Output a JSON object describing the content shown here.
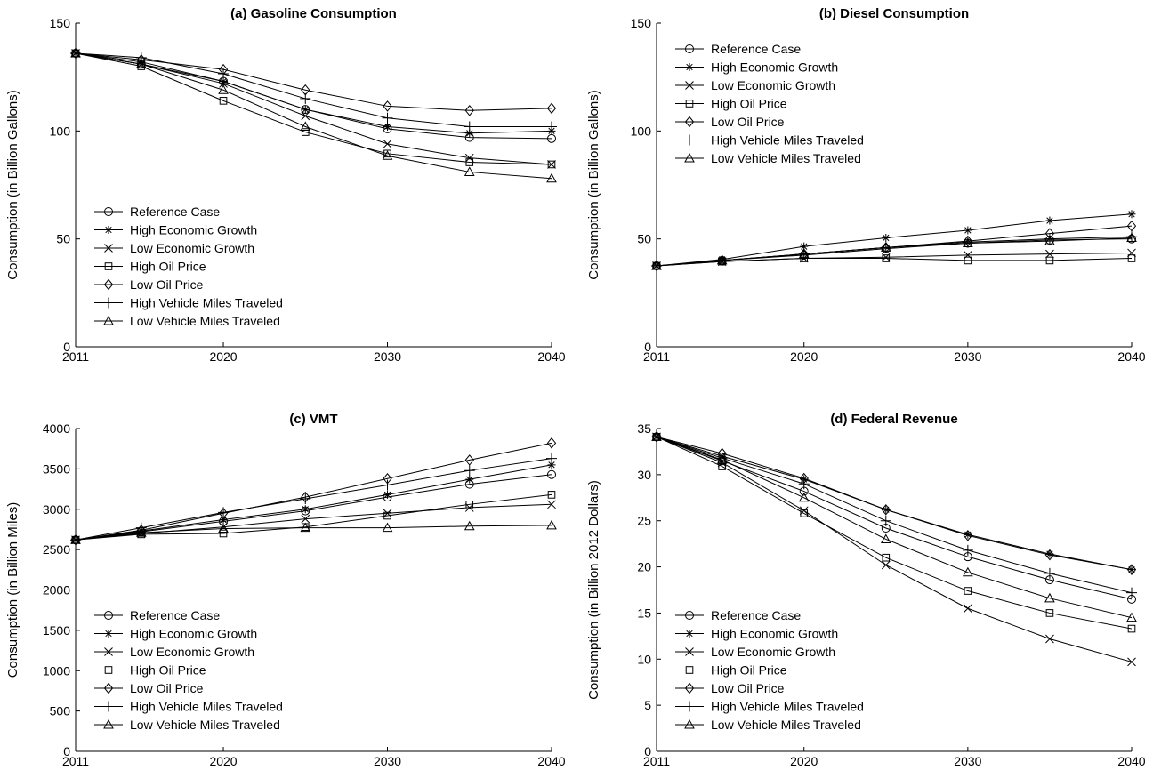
{
  "chart_data": [
    {
      "type": "line",
      "title": "(a) Gasoline Consumption",
      "ylabel": "Consumption (in Billion Gallons)",
      "xlabel": "",
      "x": [
        2011,
        2015,
        2020,
        2025,
        2030,
        2035,
        2040
      ],
      "xticks": [
        "2011",
        "2020",
        "2030",
        "2040"
      ],
      "ylim": [
        0,
        150
      ],
      "yticks": [
        "0",
        "50",
        "100",
        "150"
      ],
      "legend_position": "lower-left",
      "grid": false,
      "series": [
        {
          "name": "Reference Case",
          "marker": "circle",
          "values": [
            136,
            131,
            123,
            110,
            101,
            97,
            96.5
          ]
        },
        {
          "name": "High Economic Growth",
          "marker": "asterisk",
          "values": [
            136,
            132,
            123,
            110,
            102,
            99,
            100
          ]
        },
        {
          "name": "Low Economic Growth",
          "marker": "x",
          "values": [
            136,
            131,
            122,
            107,
            94,
            87.5,
            84.5
          ]
        },
        {
          "name": "High Oil Price",
          "marker": "square",
          "values": [
            136,
            130,
            114,
            99.5,
            89.5,
            85.5,
            84.5
          ]
        },
        {
          "name": "Low Oil Price",
          "marker": "diamond",
          "values": [
            136,
            133,
            128.5,
            119,
            111.5,
            109.5,
            110.5
          ]
        },
        {
          "name": "High Vehicle Miles Traveled",
          "marker": "plus",
          "values": [
            136,
            134,
            126.5,
            115,
            106,
            102,
            102
          ]
        },
        {
          "name": "Low Vehicle Miles Traveled",
          "marker": "triangle",
          "values": [
            136,
            131,
            119,
            102,
            88.5,
            81,
            78
          ]
        }
      ]
    },
    {
      "type": "line",
      "title": "(b) Diesel Consumption",
      "ylabel": "Consumption (in Billion Gallons)",
      "xlabel": "",
      "x": [
        2011,
        2015,
        2020,
        2025,
        2030,
        2035,
        2040
      ],
      "xticks": [
        "2011",
        "2020",
        "2030",
        "2040"
      ],
      "ylim": [
        0,
        150
      ],
      "yticks": [
        "0",
        "50",
        "100",
        "150"
      ],
      "legend_position": "top-left",
      "grid": false,
      "series": [
        {
          "name": "Reference Case",
          "marker": "circle",
          "values": [
            37.5,
            40,
            42.5,
            45.5,
            48,
            49.5,
            50
          ]
        },
        {
          "name": "High Economic Growth",
          "marker": "asterisk",
          "values": [
            37.5,
            40.5,
            46.5,
            50.5,
            54,
            58.5,
            61.5
          ]
        },
        {
          "name": "Low Economic Growth",
          "marker": "x",
          "values": [
            37.5,
            39.5,
            41,
            41.5,
            42.5,
            43,
            43.5
          ]
        },
        {
          "name": "High Oil Price",
          "marker": "square",
          "values": [
            37.5,
            39.5,
            41,
            41,
            40,
            40,
            41
          ]
        },
        {
          "name": "Low Oil Price",
          "marker": "diamond",
          "values": [
            37.5,
            40,
            43,
            46,
            49,
            52.5,
            56
          ]
        },
        {
          "name": "High Vehicle Miles Traveled",
          "marker": "plus",
          "values": [
            37.5,
            40,
            43,
            46,
            48.5,
            50,
            51
          ]
        },
        {
          "name": "Low Vehicle Miles Traveled",
          "marker": "triangle",
          "values": [
            37.5,
            40,
            43,
            46,
            48,
            49,
            50.5
          ]
        }
      ]
    },
    {
      "type": "line",
      "title": "(c) VMT",
      "ylabel": "Consumption (in Billion Miles)",
      "xlabel": "",
      "x": [
        2011,
        2015,
        2020,
        2025,
        2030,
        2035,
        2040
      ],
      "xticks": [
        "2011",
        "2020",
        "2030",
        "2040"
      ],
      "ylim": [
        0,
        4000
      ],
      "yticks": [
        "0",
        "500",
        "1000",
        "1500",
        "2000",
        "2500",
        "3000",
        "3500",
        "4000"
      ],
      "legend_position": "lower-left",
      "grid": false,
      "series": [
        {
          "name": "Reference Case",
          "marker": "circle",
          "values": [
            2620,
            2720,
            2850,
            2980,
            3150,
            3310,
            3430
          ]
        },
        {
          "name": "High Economic Growth",
          "marker": "asterisk",
          "values": [
            2620,
            2730,
            2870,
            3000,
            3180,
            3370,
            3550
          ]
        },
        {
          "name": "Low Economic Growth",
          "marker": "x",
          "values": [
            2620,
            2700,
            2780,
            2880,
            2950,
            3020,
            3060
          ]
        },
        {
          "name": "High Oil Price",
          "marker": "square",
          "values": [
            2620,
            2690,
            2700,
            2780,
            2920,
            3060,
            3180
          ]
        },
        {
          "name": "Low Oil Price",
          "marker": "diamond",
          "values": [
            2620,
            2740,
            2950,
            3150,
            3380,
            3610,
            3820
          ]
        },
        {
          "name": "High Vehicle Miles Traveled",
          "marker": "plus",
          "values": [
            2620,
            2770,
            2960,
            3130,
            3300,
            3480,
            3630
          ]
        },
        {
          "name": "Low Vehicle Miles Traveled",
          "marker": "triangle",
          "values": [
            2620,
            2710,
            2760,
            2770,
            2770,
            2790,
            2800
          ]
        }
      ]
    },
    {
      "type": "line",
      "title": "(d) Federal Revenue",
      "ylabel": "Consumption (in Billion 2012 Dollars)",
      "xlabel": "",
      "x": [
        2011,
        2015,
        2020,
        2025,
        2030,
        2035,
        2040
      ],
      "xticks": [
        "2011",
        "2020",
        "2030",
        "2040"
      ],
      "ylim": [
        0,
        35
      ],
      "yticks": [
        "0",
        "5",
        "10",
        "15",
        "20",
        "25",
        "30",
        "35"
      ],
      "legend_position": "lower-left",
      "grid": false,
      "series": [
        {
          "name": "Reference Case",
          "marker": "circle",
          "values": [
            34.1,
            31.5,
            28.2,
            24.2,
            21.1,
            18.6,
            16.5
          ]
        },
        {
          "name": "High Economic Growth",
          "marker": "asterisk",
          "values": [
            34.1,
            32,
            29.5,
            26.2,
            23.5,
            21.4,
            19.7
          ]
        },
        {
          "name": "Low Economic Growth",
          "marker": "x",
          "values": [
            34.1,
            31.3,
            26.1,
            20.2,
            15.5,
            12.2,
            9.7
          ]
        },
        {
          "name": "High Oil Price",
          "marker": "square",
          "values": [
            34.1,
            30.9,
            25.8,
            21,
            17.4,
            15,
            13.3
          ]
        },
        {
          "name": "Low Oil Price",
          "marker": "diamond",
          "values": [
            34.1,
            32.3,
            29.6,
            26.2,
            23.4,
            21.3,
            19.7
          ]
        },
        {
          "name": "High Vehicle Miles Traveled",
          "marker": "plus",
          "values": [
            34.1,
            31.8,
            29,
            25,
            21.8,
            19.3,
            17.2
          ]
        },
        {
          "name": "Low Vehicle Miles Traveled",
          "marker": "triangle",
          "values": [
            34.1,
            31.6,
            27.5,
            23,
            19.4,
            16.6,
            14.5
          ]
        }
      ]
    }
  ]
}
